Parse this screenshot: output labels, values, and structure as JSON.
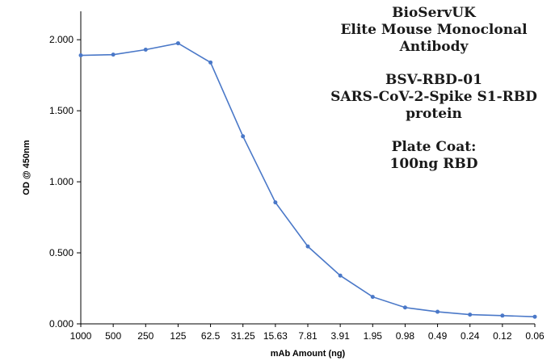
{
  "chart_data": {
    "type": "line",
    "title": "",
    "xlabel": "mAb Amount (ng)",
    "ylabel": "OD @ 450nm",
    "categories": [
      "1000",
      "500",
      "250",
      "125",
      "62.5",
      "31.25",
      "15.63",
      "7.81",
      "3.91",
      "1.95",
      "0.98",
      "0.49",
      "0.24",
      "0.12",
      "0.06"
    ],
    "series": [
      {
        "values": [
          1.89,
          1.895,
          1.93,
          1.975,
          1.84,
          1.32,
          0.855,
          0.545,
          0.34,
          0.19,
          0.115,
          0.085,
          0.065,
          0.058,
          0.05
        ]
      }
    ],
    "yticks": [
      "0.000",
      "0.500",
      "1.000",
      "1.500",
      "2.000"
    ],
    "ylim": [
      0,
      2.2
    ],
    "grid": false,
    "color": "#4a78c8",
    "annotations": {
      "company": "BioServUK",
      "product_line1": "Elite Mouse Monoclonal",
      "product_line2": "Antibody",
      "code": "BSV-RBD-01",
      "target_line1": "SARS-CoV-2-Spike S1-RBD",
      "target_line2": "protein",
      "coat_line1": "Plate Coat:",
      "coat_line2": "100ng RBD"
    }
  }
}
